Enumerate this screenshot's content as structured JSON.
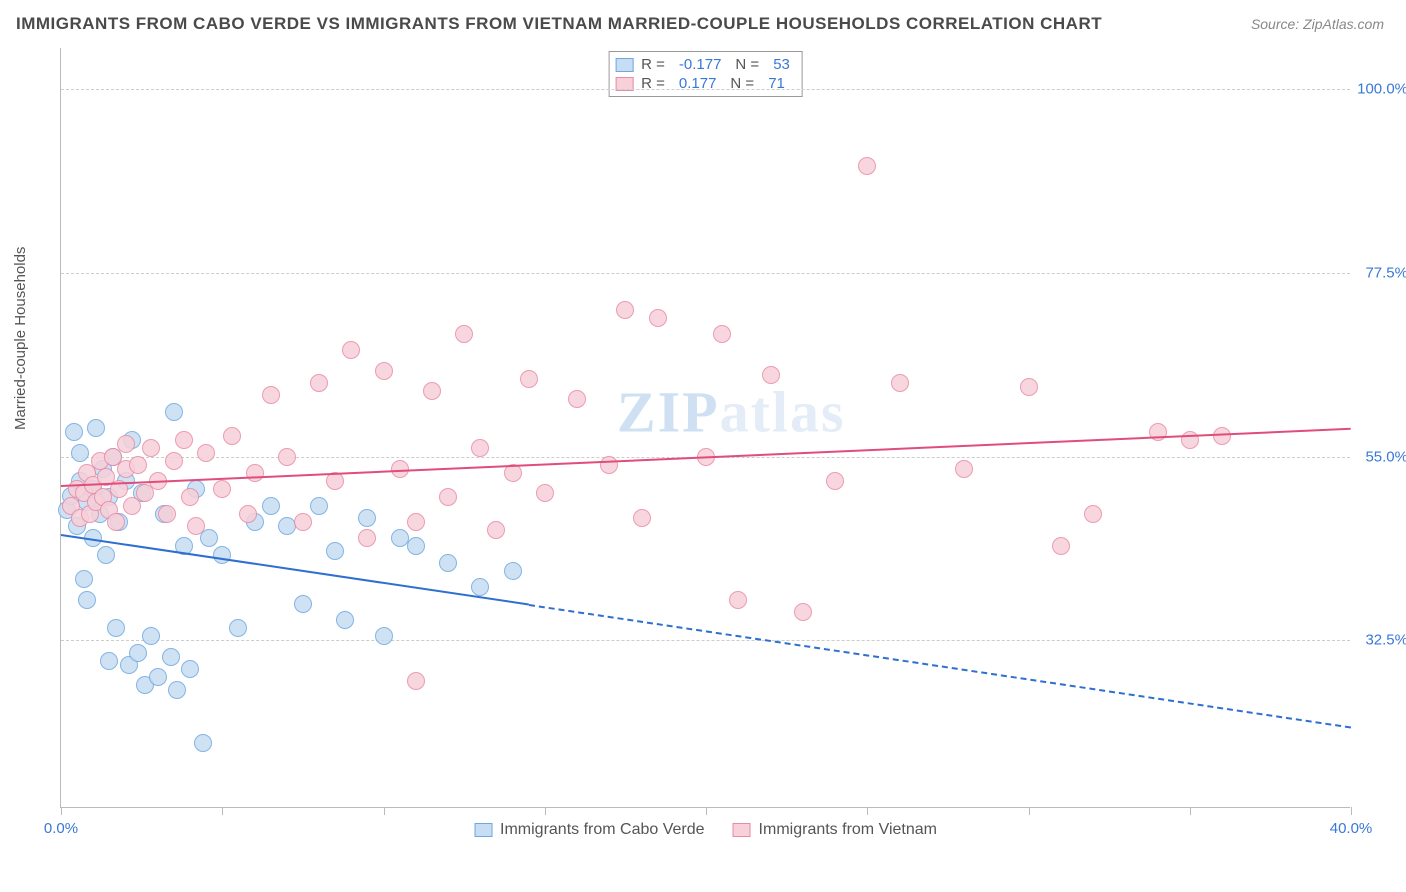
{
  "title": "IMMIGRANTS FROM CABO VERDE VS IMMIGRANTS FROM VIETNAM MARRIED-COUPLE HOUSEHOLDS CORRELATION CHART",
  "source": "Source: ZipAtlas.com",
  "y_axis_label": "Married-couple Households",
  "watermark_a": "ZIP",
  "watermark_b": "atlas",
  "chart": {
    "type": "scatter_with_regression",
    "xlim": [
      0,
      40
    ],
    "ylim": [
      12,
      105
    ],
    "x_ticks": [
      0,
      5,
      10,
      15,
      20,
      25,
      30,
      35,
      40
    ],
    "x_tick_labels": {
      "0": "0.0%",
      "40": "40.0%"
    },
    "y_gridlines": [
      32.5,
      55.0,
      77.5,
      100.0
    ],
    "y_tick_labels": [
      "32.5%",
      "55.0%",
      "77.5%",
      "100.0%"
    ],
    "background_color": "#ffffff",
    "grid_color": "#cccccc",
    "axis_color": "#bbbbbb",
    "tick_label_color": "#3978d6",
    "marker_radius": 9,
    "marker_stroke_width": 1.2,
    "series": [
      {
        "name": "Immigrants from Cabo Verde",
        "fill": "#c6ddf3",
        "stroke": "#6fa8e0",
        "line_color": "#2e6fd1",
        "R": "-0.177",
        "N": "53",
        "regression": {
          "x0": 0,
          "y0": 45.5,
          "x1_solid": 14.5,
          "y1_solid": 37.0,
          "x1_dash": 40,
          "y1_dash": 22.0
        },
        "points": [
          [
            0.2,
            48.5
          ],
          [
            0.3,
            50.2
          ],
          [
            0.4,
            58.0
          ],
          [
            0.5,
            46.5
          ],
          [
            0.6,
            52.0
          ],
          [
            0.6,
            55.5
          ],
          [
            0.7,
            40.0
          ],
          [
            0.8,
            49.5
          ],
          [
            0.8,
            37.5
          ],
          [
            1.0,
            51.0
          ],
          [
            1.0,
            45.0
          ],
          [
            1.1,
            58.5
          ],
          [
            1.2,
            48.0
          ],
          [
            1.3,
            53.5
          ],
          [
            1.4,
            43.0
          ],
          [
            1.5,
            50.0
          ],
          [
            1.5,
            30.0
          ],
          [
            1.6,
            55.0
          ],
          [
            1.7,
            34.0
          ],
          [
            1.8,
            47.0
          ],
          [
            2.0,
            52.0
          ],
          [
            2.1,
            29.5
          ],
          [
            2.2,
            57.0
          ],
          [
            2.4,
            31.0
          ],
          [
            2.5,
            50.5
          ],
          [
            2.6,
            27.0
          ],
          [
            2.8,
            33.0
          ],
          [
            3.0,
            28.0
          ],
          [
            3.2,
            48.0
          ],
          [
            3.4,
            30.5
          ],
          [
            3.5,
            60.5
          ],
          [
            3.6,
            26.5
          ],
          [
            3.8,
            44.0
          ],
          [
            4.0,
            29.0
          ],
          [
            4.2,
            51.0
          ],
          [
            4.4,
            20.0
          ],
          [
            4.6,
            45.0
          ],
          [
            5.0,
            43.0
          ],
          [
            5.5,
            34.0
          ],
          [
            6.0,
            47.0
          ],
          [
            6.5,
            49.0
          ],
          [
            7.0,
            46.5
          ],
          [
            7.5,
            37.0
          ],
          [
            8.0,
            49.0
          ],
          [
            8.5,
            43.5
          ],
          [
            8.8,
            35.0
          ],
          [
            9.5,
            47.5
          ],
          [
            10.0,
            33.0
          ],
          [
            10.5,
            45.0
          ],
          [
            11.0,
            44.0
          ],
          [
            12.0,
            42.0
          ],
          [
            13.0,
            39.0
          ],
          [
            14.0,
            41.0
          ]
        ]
      },
      {
        "name": "Immigrants from Vietnam",
        "fill": "#f7d0da",
        "stroke": "#e88ba4",
        "line_color": "#e04d7a",
        "R": "0.177",
        "N": "71",
        "regression": {
          "x0": 0,
          "y0": 51.5,
          "x1_solid": 40,
          "y1_solid": 58.5,
          "x1_dash": 40,
          "y1_dash": 58.5
        },
        "points": [
          [
            0.3,
            49.0
          ],
          [
            0.5,
            51.0
          ],
          [
            0.6,
            47.5
          ],
          [
            0.7,
            50.5
          ],
          [
            0.8,
            53.0
          ],
          [
            0.9,
            48.0
          ],
          [
            1.0,
            51.5
          ],
          [
            1.1,
            49.5
          ],
          [
            1.2,
            54.5
          ],
          [
            1.3,
            50.0
          ],
          [
            1.4,
            52.5
          ],
          [
            1.5,
            48.5
          ],
          [
            1.6,
            55.0
          ],
          [
            1.7,
            47.0
          ],
          [
            1.8,
            51.0
          ],
          [
            2.0,
            53.5
          ],
          [
            2.0,
            56.5
          ],
          [
            2.2,
            49.0
          ],
          [
            2.4,
            54.0
          ],
          [
            2.6,
            50.5
          ],
          [
            2.8,
            56.0
          ],
          [
            3.0,
            52.0
          ],
          [
            3.3,
            48.0
          ],
          [
            3.5,
            54.5
          ],
          [
            3.8,
            57.0
          ],
          [
            4.0,
            50.0
          ],
          [
            4.2,
            46.5
          ],
          [
            4.5,
            55.5
          ],
          [
            5.0,
            51.0
          ],
          [
            5.3,
            57.5
          ],
          [
            5.8,
            48.0
          ],
          [
            6.0,
            53.0
          ],
          [
            6.5,
            62.5
          ],
          [
            7.0,
            55.0
          ],
          [
            7.5,
            47.0
          ],
          [
            8.0,
            64.0
          ],
          [
            8.5,
            52.0
          ],
          [
            9.0,
            68.0
          ],
          [
            9.5,
            45.0
          ],
          [
            10.0,
            65.5
          ],
          [
            10.5,
            53.5
          ],
          [
            11.0,
            47.0
          ],
          [
            11.0,
            27.5
          ],
          [
            11.5,
            63.0
          ],
          [
            12.0,
            50.0
          ],
          [
            12.5,
            70.0
          ],
          [
            13.0,
            56.0
          ],
          [
            13.5,
            46.0
          ],
          [
            14.0,
            53.0
          ],
          [
            14.5,
            64.5
          ],
          [
            15.0,
            50.5
          ],
          [
            16.0,
            62.0
          ],
          [
            17.0,
            54.0
          ],
          [
            17.5,
            73.0
          ],
          [
            18.0,
            47.5
          ],
          [
            18.5,
            72.0
          ],
          [
            20.0,
            55.0
          ],
          [
            20.5,
            70.0
          ],
          [
            21.0,
            37.5
          ],
          [
            22.0,
            65.0
          ],
          [
            23.0,
            36.0
          ],
          [
            24.0,
            52.0
          ],
          [
            25.0,
            90.5
          ],
          [
            26.0,
            64.0
          ],
          [
            28.0,
            53.5
          ],
          [
            30.0,
            63.5
          ],
          [
            31.0,
            44.0
          ],
          [
            32.0,
            48.0
          ],
          [
            34.0,
            58.0
          ],
          [
            35.0,
            57.0
          ],
          [
            36.0,
            57.5
          ]
        ]
      }
    ]
  }
}
